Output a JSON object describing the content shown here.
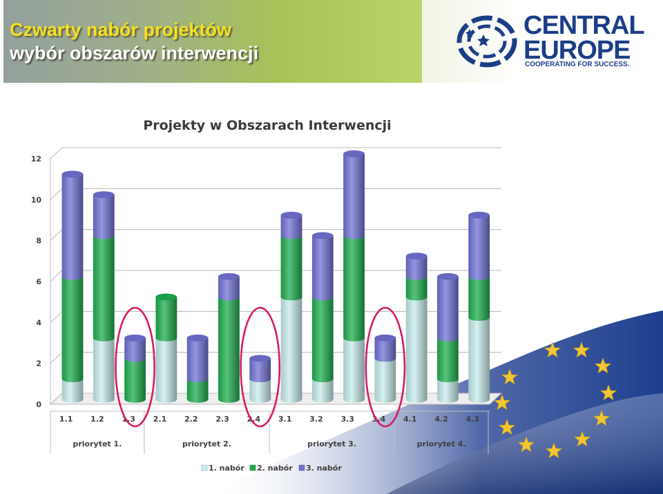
{
  "header": {
    "title_line1": "Czwarty nabór projektów",
    "title_line2": "wybór obszarów interwencji"
  },
  "logo": {
    "line1": "CENTRAL",
    "line2": "EUROPE",
    "tagline": "COOPERATING FOR SUCCESS."
  },
  "colors": {
    "accent_green": "#9fbe50",
    "title_yellow": "#f6e021",
    "logo_blue": "#1c3e88",
    "highlight_circle": "#d81b60",
    "eu_flag_blue": "#1d3f8e",
    "eu_star_gold": "#f2c531"
  },
  "chart_data": {
    "type": "bar",
    "stacked": true,
    "three_d": true,
    "title": "Projekty w Obszarach Interwencji",
    "categories": [
      "1.1",
      "1.2",
      "1.3",
      "2.1",
      "2.2",
      "2.3",
      "2.4",
      "3.1",
      "3.2",
      "3.3",
      "3.4",
      "4.1",
      "4.2",
      "4.3"
    ],
    "groups": [
      {
        "label": "priorytet 1.",
        "categories": [
          "1.1",
          "1.2",
          "1.3"
        ]
      },
      {
        "label": "priorytet 2.",
        "categories": [
          "2.1",
          "2.2",
          "2.3",
          "2.4"
        ]
      },
      {
        "label": "priorytet 3.",
        "categories": [
          "3.1",
          "3.2",
          "3.3",
          "3.4"
        ]
      },
      {
        "label": "priorytet 4.",
        "categories": [
          "4.1",
          "4.2",
          "4.3"
        ]
      }
    ],
    "series": [
      {
        "name": "1. nabór",
        "color": "#c8ecec",
        "values": [
          1,
          3,
          0,
          3,
          0,
          0,
          1,
          5,
          1,
          3,
          2,
          5,
          1,
          4
        ]
      },
      {
        "name": "2. nabór",
        "color": "#1fae4f",
        "values": [
          5,
          5,
          2,
          2,
          1,
          5,
          0,
          3,
          4,
          5,
          0,
          1,
          2,
          2
        ]
      },
      {
        "name": "3. nabór",
        "color": "#7272d6",
        "values": [
          5,
          2,
          1,
          0,
          2,
          1,
          1,
          1,
          3,
          4,
          1,
          1,
          3,
          3
        ]
      }
    ],
    "ylim": [
      0,
      12
    ],
    "yticks": [
      0,
      2,
      4,
      6,
      8,
      10,
      12
    ],
    "grid": true,
    "legend_position": "bottom",
    "highlighted_categories": [
      "1.3",
      "2.4",
      "3.4"
    ]
  }
}
